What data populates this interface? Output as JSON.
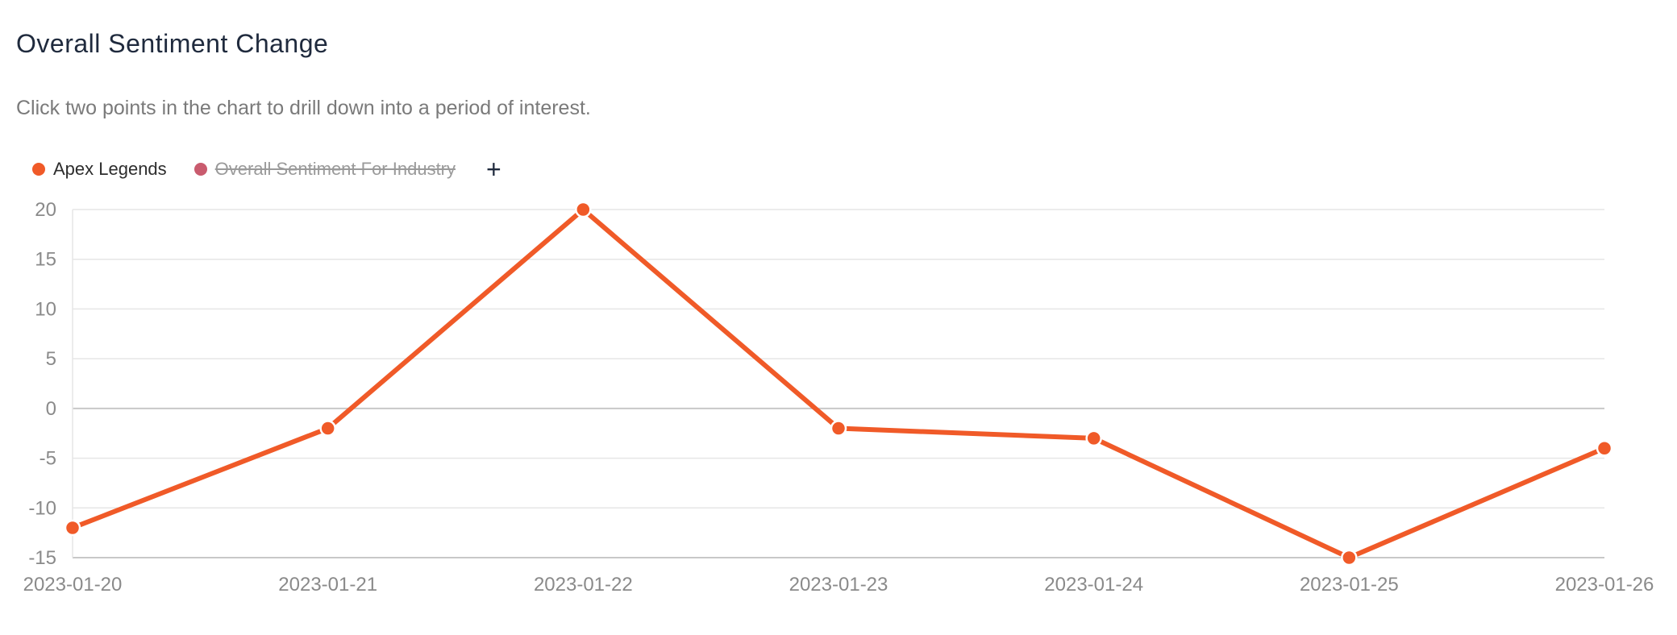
{
  "header": {
    "title": "Overall Sentiment Change",
    "subtitle": "Click two points in the chart to drill down into a period of interest."
  },
  "legend": {
    "items": [
      {
        "label": "Apex Legends",
        "color": "#f05a28",
        "hidden": false
      },
      {
        "label": "Overall Sentiment For Industry",
        "color": "#c95b6e",
        "hidden": true
      }
    ],
    "add_label": "+"
  },
  "chart_data": {
    "type": "line",
    "title": "Overall Sentiment Change",
    "xlabel": "",
    "ylabel": "",
    "categories": [
      "2023-01-20",
      "2023-01-21",
      "2023-01-22",
      "2023-01-23",
      "2023-01-24",
      "2023-01-25",
      "2023-01-26"
    ],
    "series": [
      {
        "name": "Apex Legends",
        "color": "#f05a28",
        "values": [
          -12,
          -2,
          20,
          -2,
          -3,
          -15,
          -4
        ]
      }
    ],
    "ylim": [
      -15,
      20
    ],
    "yticks": [
      20,
      15,
      10,
      5,
      0,
      -5,
      -10,
      -15
    ],
    "grid": true,
    "legend_position": "top-left"
  }
}
